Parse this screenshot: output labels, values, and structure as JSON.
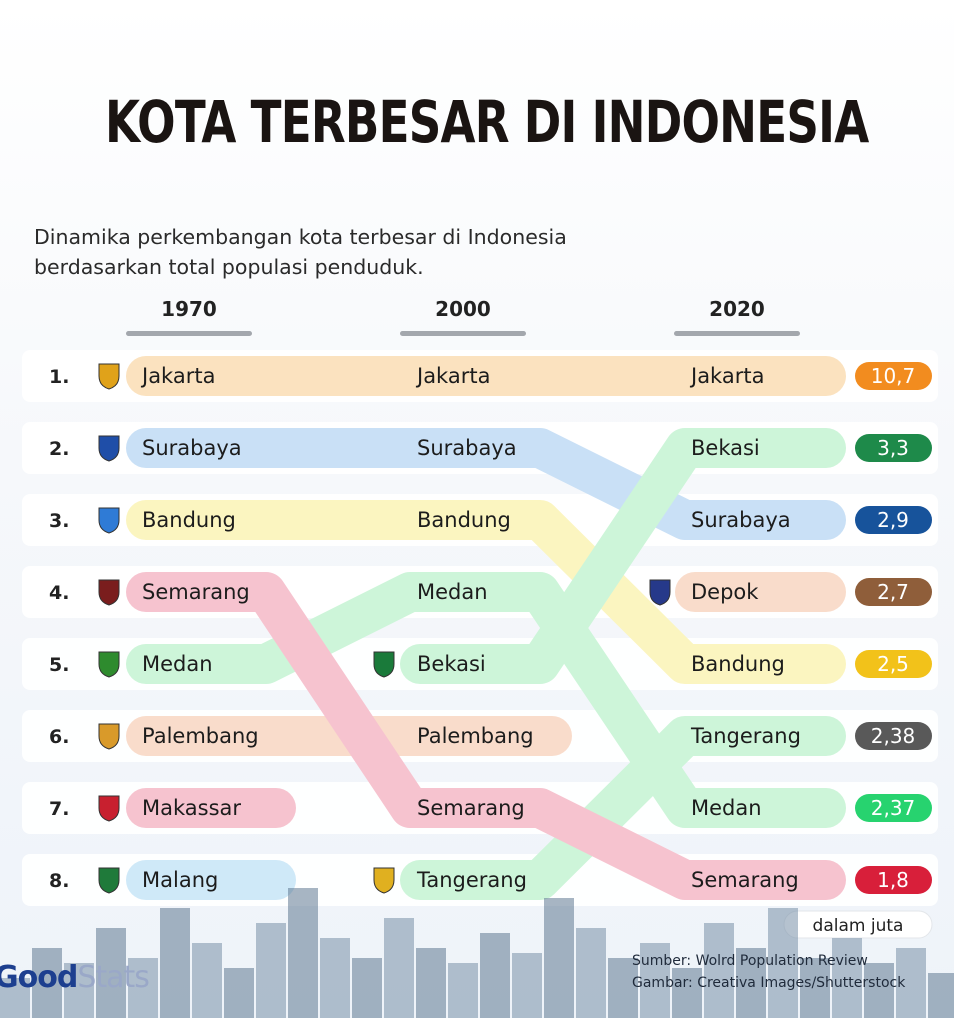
{
  "title": "KOTA TERBESAR DI INDONESIA",
  "subtitle": "Dinamika perkembangan kota terbesar di Indonesia berdasarkan total populasi penduduk.",
  "unit_label": "dalam juta",
  "source_line1": "Sumber: Wolrd Population Review",
  "source_line2": "Gambar: Creativa Images/Shutterstock",
  "logo": {
    "part1": "Good",
    "part2": "Stats"
  },
  "colors": {
    "Jakarta": "#fbe2bf",
    "Surabaya": "#c9e0f6",
    "Bandung": "#fbf5c0",
    "Semarang": "#f6c3cf",
    "Medan": "#cdf5d9",
    "Palembang": "#f9dccb",
    "Makassar": "#f6c3cf",
    "Malang": "#cfe9f8",
    "Bekasi": "#cdf5d9",
    "Tangerang": "#cdf5d9",
    "Depok": "#f9dccb"
  },
  "badge_colors": [
    "#f28c1f",
    "#1e8a4a",
    "#17539b",
    "#8f5e3a",
    "#f2c21a",
    "#595959",
    "#27d36f",
    "#d81f3a"
  ],
  "chart_data": {
    "type": "table",
    "title": "KOTA TERBESAR DI INDONESIA",
    "years": [
      "1970",
      "2000",
      "2020"
    ],
    "ranks": [
      "1.",
      "2.",
      "3.",
      "4.",
      "5.",
      "6.",
      "7.",
      "8."
    ],
    "rankings": {
      "1970": [
        "Jakarta",
        "Surabaya",
        "Bandung",
        "Semarang",
        "Medan",
        "Palembang",
        "Makassar",
        "Malang"
      ],
      "2000": [
        "Jakarta",
        "Surabaya",
        "Bandung",
        "Medan",
        "Bekasi",
        "Palembang",
        "Semarang",
        "Tangerang"
      ],
      "2020": [
        "Jakarta",
        "Bekasi",
        "Surabaya",
        "Depok",
        "Bandung",
        "Tangerang",
        "Medan",
        "Semarang"
      ]
    },
    "population_2020": [
      "10,7",
      "3,3",
      "2,9",
      "2,7",
      "2,5",
      "2,38",
      "2,37",
      "1,8"
    ],
    "population_2020_values": [
      10.7,
      3.3,
      2.9,
      2.7,
      2.5,
      2.38,
      2.37,
      1.8
    ],
    "unit": "dalam juta"
  }
}
